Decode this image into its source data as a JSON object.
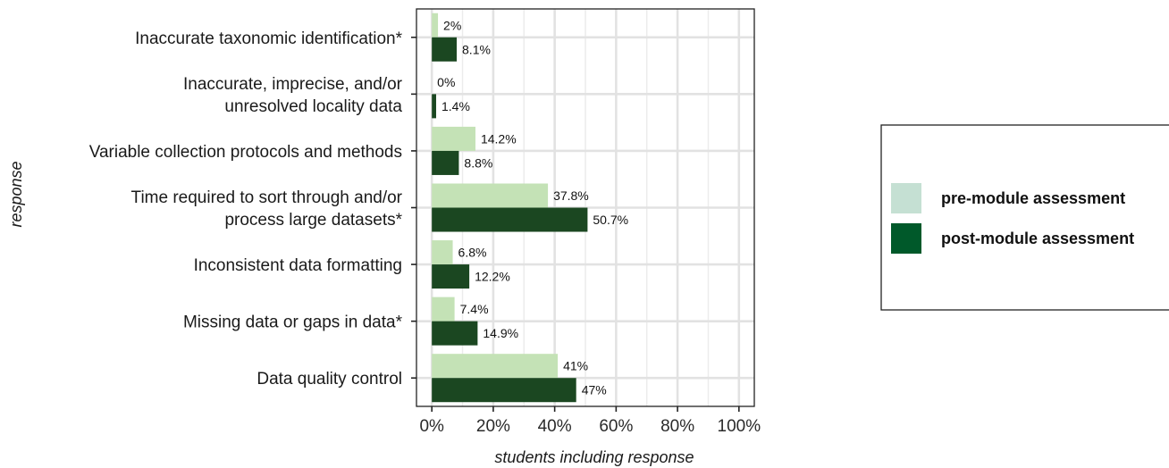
{
  "chart_data": {
    "type": "bar",
    "orientation": "horizontal",
    "categories": [
      [
        "Inaccurate taxonomic identification*"
      ],
      [
        "Inaccurate, imprecise, and/or",
        "unresolved locality data"
      ],
      [
        "Variable collection protocols and methods"
      ],
      [
        "Time required to sort through and/or",
        "process large datasets*"
      ],
      [
        "Inconsistent data formatting"
      ],
      [
        "Missing data or gaps in data*"
      ],
      [
        "Data quality control"
      ]
    ],
    "series": [
      {
        "name": "pre-module assessment",
        "color": "#c4e2b6",
        "legend_color": "#c5e0d3",
        "values": [
          2,
          0,
          14.2,
          37.8,
          6.8,
          7.4,
          41
        ],
        "labels": [
          "2%",
          "0%",
          "14.2%",
          "37.8%",
          "6.8%",
          "7.4%",
          "41%"
        ]
      },
      {
        "name": "post-module assessment",
        "color": "#1b4721",
        "legend_color": "#00592a",
        "values": [
          8.1,
          1.4,
          8.8,
          50.7,
          12.2,
          14.9,
          47
        ],
        "labels": [
          "8.1%",
          "1.4%",
          "8.8%",
          "50.7%",
          "12.2%",
          "14.9%",
          "47%"
        ]
      }
    ],
    "xlim": [
      -5,
      105
    ],
    "xticks": [
      0,
      20,
      40,
      60,
      80,
      100
    ],
    "xtick_labels": [
      "0%",
      "20%",
      "40%",
      "60%",
      "80%",
      "100%"
    ],
    "xlabel": "students including response",
    "ylabel": "response",
    "grid": true,
    "legend_position": "right"
  }
}
